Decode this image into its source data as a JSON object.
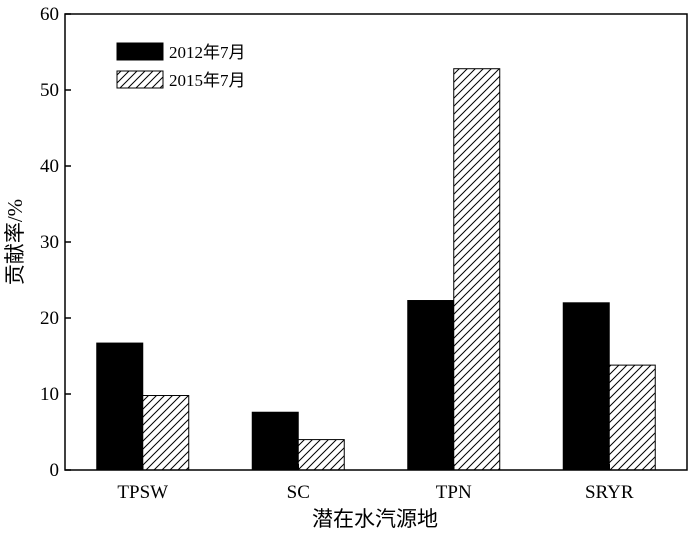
{
  "chart_data": {
    "type": "bar",
    "categories": [
      "TPSW",
      "SC",
      "TPN",
      "SRYR"
    ],
    "series": [
      {
        "name": "2012年7月",
        "values": [
          16.7,
          7.6,
          22.3,
          22.0
        ],
        "fill": "#000000"
      },
      {
        "name": "2015年7月",
        "values": [
          9.8,
          4.0,
          52.8,
          13.8
        ],
        "fill": "hatch"
      }
    ],
    "xlabel": "潜在水汽源地",
    "ylabel": "贡献率/%",
    "ylim": [
      0,
      60
    ],
    "yticks": [
      0,
      10,
      20,
      30,
      40,
      50,
      60
    ],
    "grid": false,
    "legend": "top-left"
  }
}
